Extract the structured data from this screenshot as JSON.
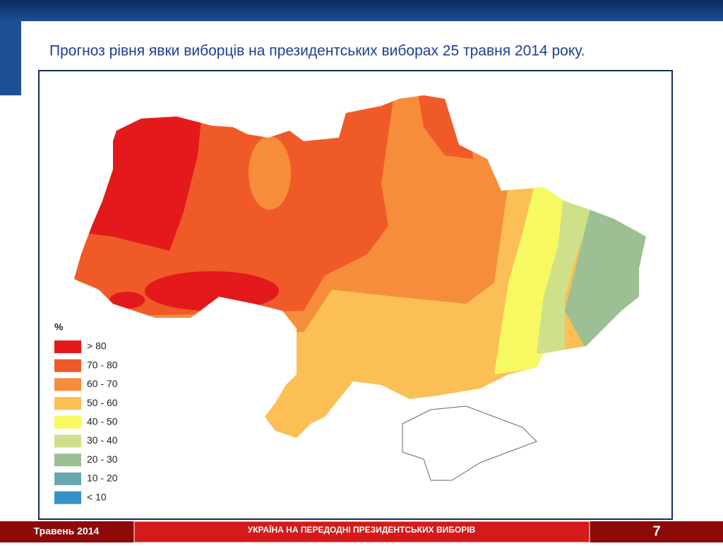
{
  "header": {
    "title": "Прогноз рівня явки виборців на президентських виборах 25 травня 2014 року."
  },
  "legend": {
    "title": "%",
    "items": [
      {
        "label": "> 80",
        "color": "#e3191c"
      },
      {
        "label": "70 - 80",
        "color": "#f05a28"
      },
      {
        "label": "60 - 70",
        "color": "#f68d3b"
      },
      {
        "label": "50 - 60",
        "color": "#fbbf55"
      },
      {
        "label": "40 - 50",
        "color": "#f6f961"
      },
      {
        "label": "30 - 40",
        "color": "#cfe08a"
      },
      {
        "label": "20 - 30",
        "color": "#9cbf93"
      },
      {
        "label": "10 - 20",
        "color": "#69a8ad"
      },
      {
        "label": "< 10",
        "color": "#3592c9"
      }
    ]
  },
  "footer": {
    "date": "Травень 2014",
    "caption": "УКРАЇНА НА ПЕРЕДОДНІ ПРЕЗИДЕНТСЬКИХ ВИБОРІВ",
    "page": "7"
  }
}
